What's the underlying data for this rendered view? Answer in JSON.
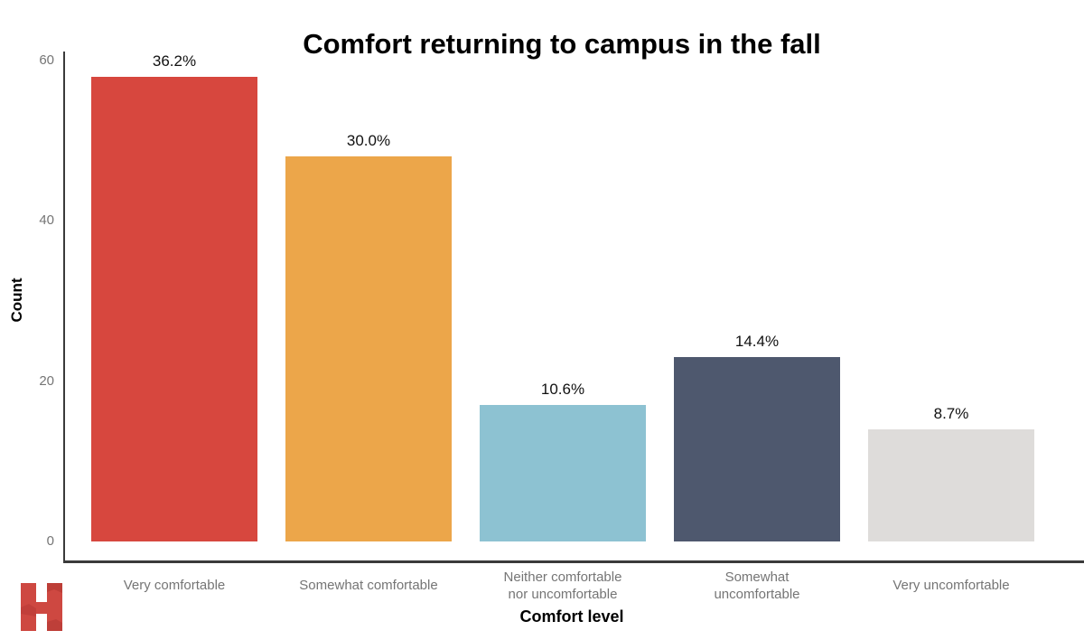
{
  "chart_data": {
    "type": "bar",
    "title": "Comfort returning to campus in the fall",
    "xlabel": "Comfort level",
    "ylabel": "Count",
    "categories": [
      "Very comfortable",
      "Somewhat comfortable",
      "Neither comfortable nor uncomfortable",
      "Somewhat uncomfortable",
      "Very uncomfortable"
    ],
    "category_display": [
      [
        "Very comfortable"
      ],
      [
        "Somewhat comfortable"
      ],
      [
        "Neither comfortable",
        "nor uncomfortable"
      ],
      [
        "Somewhat",
        "uncomfortable"
      ],
      [
        "Very uncomfortable"
      ]
    ],
    "values": [
      58,
      48,
      17,
      23,
      14
    ],
    "bar_labels": [
      "36.2%",
      "30.0%",
      "10.6%",
      "14.4%",
      "8.7%"
    ],
    "bar_colors": [
      "#D7473E",
      "#ECA64A",
      "#8DC2D2",
      "#4E586E",
      "#DEDCDA"
    ],
    "ylim": [
      0,
      60
    ],
    "yticks": [
      0,
      20,
      40,
      60
    ],
    "grid": false,
    "legend": "none",
    "axis_color": "#3a3a3a",
    "tick_label_color": "#757575",
    "value_label_color": "#111111"
  },
  "logo": {
    "glyph": "H",
    "color": "#CE4841",
    "shade_color": "#A8322D",
    "name": "h-logo"
  }
}
